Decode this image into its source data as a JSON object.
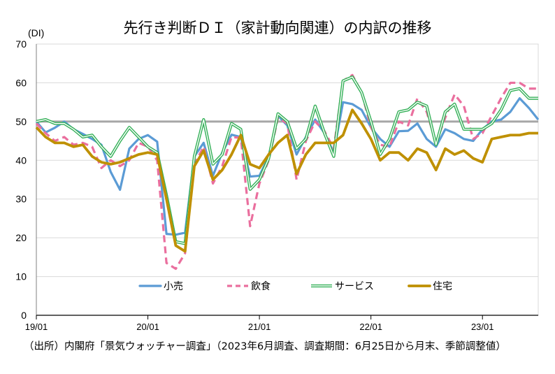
{
  "title": "先行き判断ＤＩ（家計動向関連）の内訳の推移",
  "note": "（出所）内閣府「景気ウォッチャー調査」（2023年6月調査、調査期間：6月25日から月末、季節調整値）",
  "chart_data": {
    "type": "line",
    "ylabel": "(DI)",
    "ylim": [
      0,
      70
    ],
    "yticks": [
      0,
      10,
      20,
      30,
      40,
      50,
      60,
      70
    ],
    "reference_line": 50,
    "x_start": "2019-01",
    "x_end": "2023-06",
    "x_tick_labels": [
      "19/01",
      "20/01",
      "21/01",
      "22/01",
      "23/01"
    ],
    "legend_position": "bottom-inside",
    "grid": "horizontal",
    "series": [
      {
        "name": "小売",
        "color": "#5b9bd5",
        "style": "solid",
        "values": [
          50.0,
          47.2,
          48.4,
          50.0,
          48.0,
          46.8,
          45.5,
          44.0,
          37.0,
          32.4,
          43.0,
          45.5,
          46.5,
          44.8,
          21.0,
          20.8,
          21.3,
          41.0,
          44.5,
          36.0,
          42.0,
          46.6,
          46.0,
          35.8,
          36.0,
          41.0,
          51.5,
          49.0,
          41.5,
          46.0,
          50.5,
          47.0,
          42.0,
          55.0,
          54.5,
          53.0,
          48.5,
          45.5,
          43.5,
          47.5,
          47.6,
          49.5,
          45.5,
          43.5,
          48.0,
          47.0,
          45.5,
          45.0,
          48.0,
          50.0,
          50.5,
          52.5,
          56.0,
          53.5,
          50.5
        ]
      },
      {
        "name": "飲食",
        "color": "#ea6f9e",
        "style": "dashed",
        "values": [
          49.5,
          47.0,
          45.0,
          46.0,
          44.0,
          44.5,
          43.5,
          38.0,
          40.0,
          38.5,
          40.0,
          44.5,
          43.5,
          40.0,
          13.5,
          12.0,
          16.0,
          39.0,
          43.5,
          34.0,
          38.5,
          46.0,
          45.8,
          23.0,
          34.0,
          40.0,
          51.0,
          49.5,
          35.0,
          45.0,
          50.0,
          47.5,
          43.0,
          60.5,
          62.0,
          57.5,
          48.5,
          44.0,
          43.5,
          50.0,
          49.0,
          56.0,
          52.5,
          44.5,
          51.0,
          57.0,
          54.0,
          45.5,
          47.0,
          51.5,
          56.0,
          60.0,
          60.0,
          58.5,
          58.5
        ]
      },
      {
        "name": "サービス",
        "color": "#33b057",
        "style": "double",
        "values": [
          50.0,
          50.5,
          49.5,
          49.5,
          48.0,
          46.0,
          46.5,
          43.5,
          41.0,
          45.0,
          48.5,
          46.0,
          43.5,
          42.0,
          31.0,
          19.0,
          18.5,
          41.0,
          50.5,
          39.0,
          41.5,
          49.5,
          48.0,
          32.5,
          35.0,
          40.5,
          52.0,
          50.0,
          43.0,
          45.5,
          54.0,
          47.0,
          41.0,
          60.5,
          61.5,
          57.5,
          50.0,
          41.5,
          45.5,
          52.5,
          53.0,
          55.0,
          54.0,
          44.0,
          52.5,
          54.5,
          48.0,
          48.0,
          48.0,
          49.5,
          53.0,
          58.0,
          58.5,
          56.0,
          56.0
        ]
      },
      {
        "name": "住宅",
        "color": "#bf9000",
        "style": "solid-thick",
        "values": [
          48.5,
          46.0,
          44.5,
          44.5,
          43.5,
          44.0,
          41.0,
          39.5,
          39.0,
          39.5,
          40.5,
          41.5,
          42.0,
          41.5,
          30.0,
          18.0,
          16.5,
          38.5,
          42.5,
          35.0,
          37.5,
          41.5,
          46.5,
          39.0,
          38.0,
          41.5,
          44.5,
          46.5,
          36.5,
          41.5,
          44.5,
          44.5,
          44.5,
          46.5,
          53.0,
          49.5,
          45.5,
          40.0,
          42.0,
          42.0,
          40.0,
          43.0,
          42.0,
          37.5,
          43.0,
          41.5,
          42.5,
          40.5,
          39.5,
          45.5,
          46.0,
          46.5,
          46.5,
          47.0,
          47.0
        ]
      }
    ]
  }
}
